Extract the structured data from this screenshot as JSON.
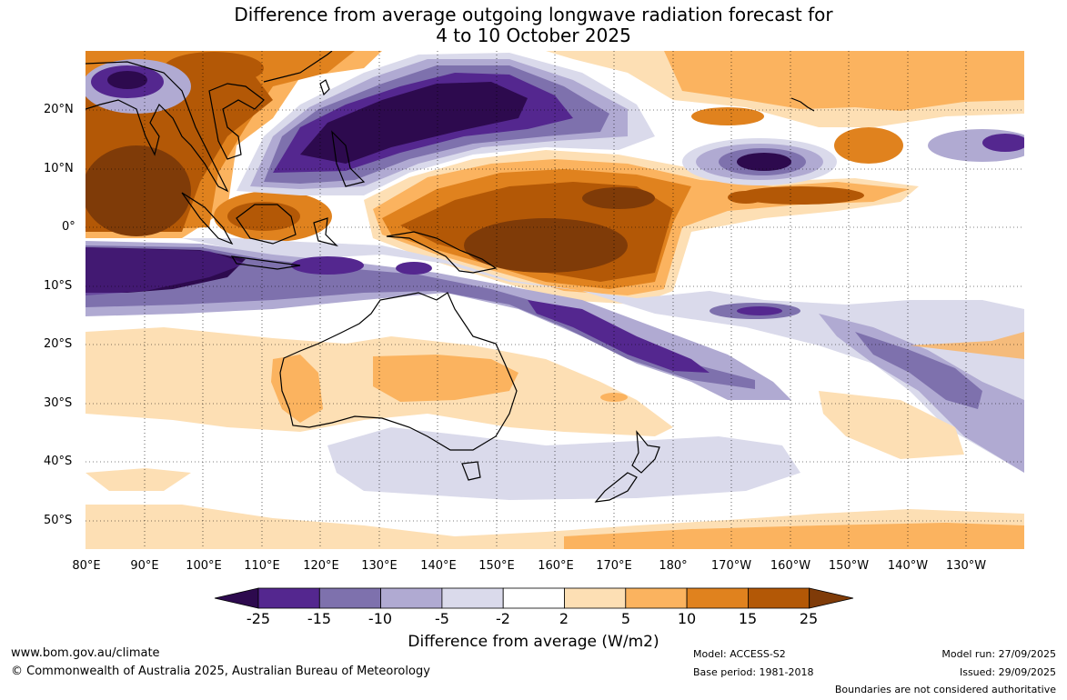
{
  "title": {
    "line1": "Difference from average outgoing longwave radiation forecast for",
    "line2": "4 to 10 October 2025"
  },
  "lat_labels": [
    "20°N",
    "10°N",
    "0°",
    "10°S",
    "20°S",
    "30°S",
    "40°S",
    "50°S"
  ],
  "lon_labels": [
    "80°E",
    "90°E",
    "100°E",
    "110°E",
    "120°E",
    "130°E",
    "140°E",
    "150°E",
    "160°E",
    "170°E",
    "180°",
    "170°W",
    "160°W",
    "150°W",
    "140°W",
    "130°W"
  ],
  "colorbar": {
    "label": "Difference from average (W/m2)",
    "ticks": [
      "-25",
      "-15",
      "-10",
      "-5",
      "-2",
      "2",
      "5",
      "10",
      "15",
      "25"
    ],
    "colors": [
      "#2d0a4e",
      "#54278f",
      "#7e71ad",
      "#b0aad2",
      "#dadaeb",
      "#ffffff",
      "#fddfb4",
      "#fbb35f",
      "#e0821e",
      "#b35806",
      "#7f3b08"
    ]
  },
  "footer": {
    "url": "www.bom.gov.au/climate",
    "copyright": "© Commonwealth of Australia 2025, Australian Bureau of Meteorology",
    "model": "Model: ACCESS-S2",
    "base_period": "Base period: 1981-2018",
    "model_run": "Model run: 27/09/2025",
    "issued": "Issued: 29/09/2025",
    "disclaimer": "Boundaries are not considered authoritative"
  }
}
